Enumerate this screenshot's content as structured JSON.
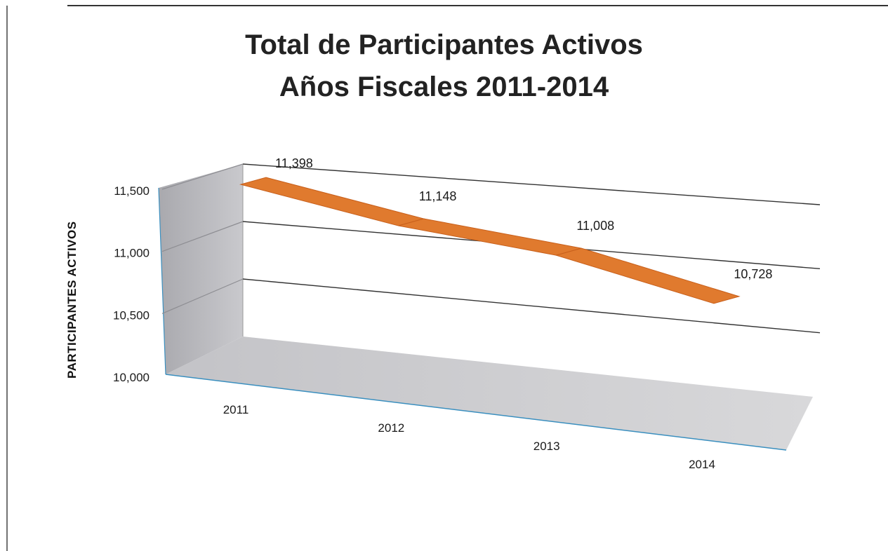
{
  "chart_data": {
    "type": "line",
    "title": "Total de Participantes Activos",
    "subtitle": "Años Fiscales 2011-2014",
    "xlabel": "",
    "ylabel": "PARTICIPANTES ACTIVOS",
    "categories": [
      "2011",
      "2012",
      "2013",
      "2014"
    ],
    "series": [
      {
        "values": [
          11398,
          11148,
          11008,
          10728
        ],
        "data_labels": [
          "11,398",
          "11,148",
          "11,008",
          "10,728"
        ]
      }
    ],
    "ylim": [
      10000,
      11500
    ],
    "yticks": [
      10000,
      10500,
      11000,
      11500
    ],
    "ytick_labels": [
      "10,000",
      "10,500",
      "11,000",
      "11,500"
    ],
    "grid": true,
    "legend": "none",
    "style": "3d-line",
    "colors": {
      "line_top": "#e07a2e",
      "line_face": "#c8601c",
      "wall": "#b9b9bd",
      "floor": "#cfcfd2"
    }
  }
}
